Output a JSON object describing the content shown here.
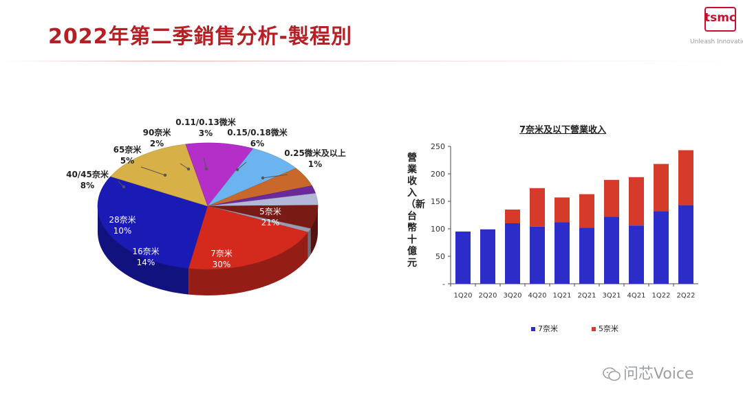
{
  "header": {
    "title": "2022年第二季銷售分析-製程別",
    "logo_text": "tsmc",
    "tagline": "Unleash Innovation",
    "accent_color": "#b52025"
  },
  "watermark": {
    "text": "问芯Voice",
    "icon": "wechat-icon"
  },
  "chart_data": [
    {
      "type": "pie",
      "title": "",
      "slices": [
        {
          "label": "7奈米",
          "value": 30,
          "display": "30%",
          "color": "#1a1ab4"
        },
        {
          "label": "16奈米",
          "value": 14,
          "display": "14%",
          "color": "#d8b048"
        },
        {
          "label": "28奈米",
          "value": 10,
          "display": "10%",
          "color": "#b42ec8"
        },
        {
          "label": "40/45奈米",
          "value": 8,
          "display": "8%",
          "color": "#6cb4f0"
        },
        {
          "label": "65奈米",
          "value": 5,
          "display": "5%",
          "color": "#c8682a"
        },
        {
          "label": "90奈米",
          "value": 2,
          "display": "2%",
          "color": "#6a2a9a"
        },
        {
          "label": "0.11/0.13微米",
          "value": 3,
          "display": "3%",
          "color": "#b4b8d8"
        },
        {
          "label": "0.15/0.18微米",
          "value": 6,
          "display": "6%",
          "color": "#7a1a14"
        },
        {
          "label": "0.25微米及以上",
          "value": 1,
          "display": "1%",
          "color": "#9a9ab0"
        },
        {
          "label": "5奈米",
          "value": 21,
          "display": "21%",
          "color": "#d42a1e"
        }
      ]
    },
    {
      "type": "bar",
      "stacked": true,
      "title": "7奈米及以下營業收入",
      "xlabel": "",
      "ylabel": "營業收入（新台幣十億元",
      "categories": [
        "1Q20",
        "2Q20",
        "3Q20",
        "4Q20",
        "1Q21",
        "2Q21",
        "3Q21",
        "4Q21",
        "1Q22",
        "2Q22"
      ],
      "series": [
        {
          "name": "7奈米",
          "color": "#2c2cc8",
          "values": [
            95,
            99,
            110,
            104,
            112,
            102,
            122,
            106,
            132,
            143
          ]
        },
        {
          "name": "5奈米",
          "color": "#d63a2a",
          "values": [
            0,
            0,
            25,
            70,
            45,
            61,
            67,
            88,
            86,
            100
          ]
        }
      ],
      "yticks": [
        "-",
        "50",
        "100",
        "150",
        "200",
        "250"
      ],
      "ylim": [
        0,
        250
      ],
      "grid": false,
      "legend": "bottom"
    }
  ]
}
